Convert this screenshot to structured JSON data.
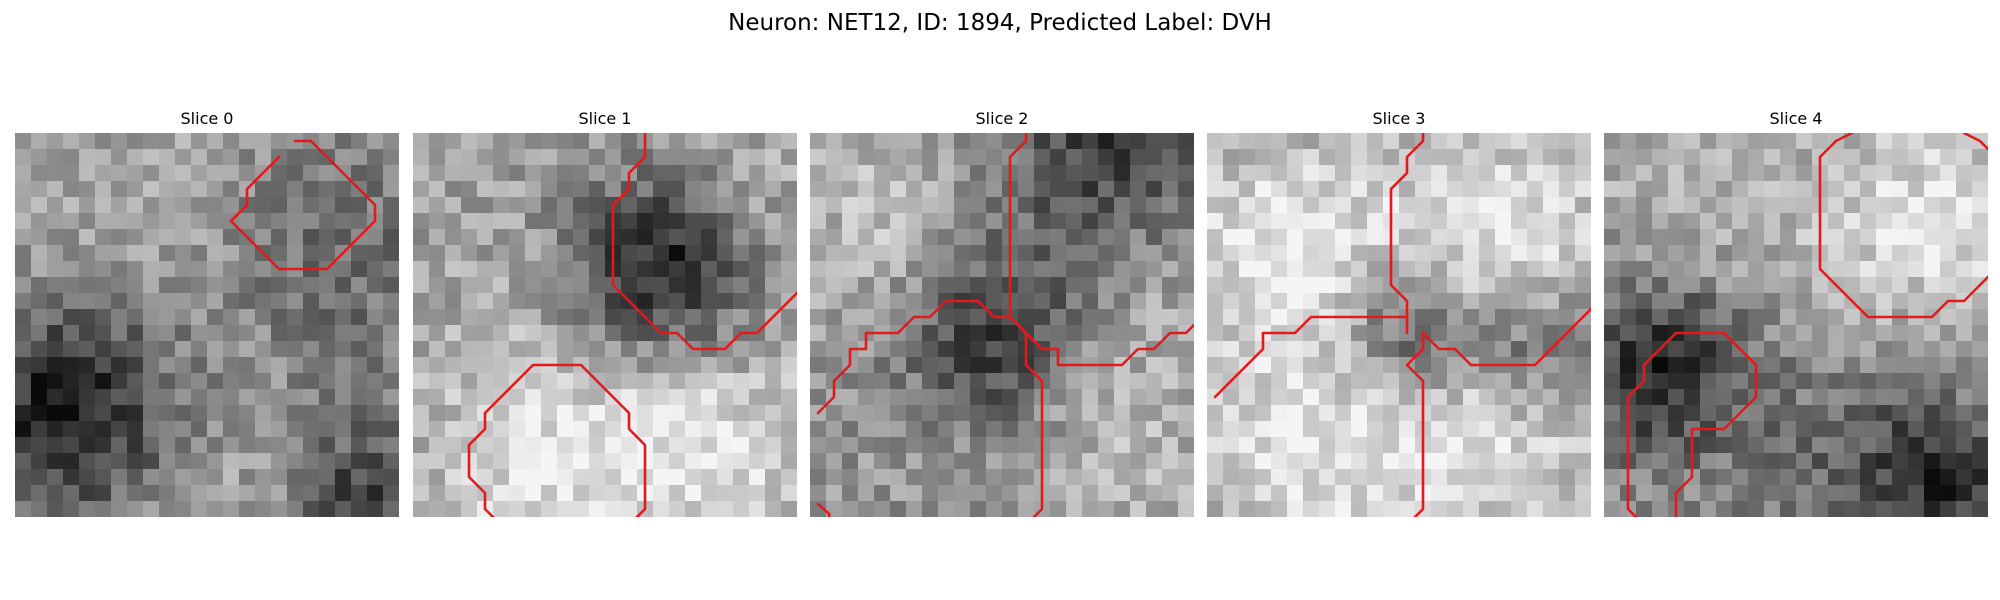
{
  "title": "Neuron: NET12, ID: 1894, Predicted Label: DVH",
  "contour_color": "#e31a1c",
  "panels": [
    {
      "title": "Slice 0",
      "contours": [
        [
          [
            17,
            0
          ],
          [
            18,
            0
          ],
          [
            19,
            1
          ],
          [
            20,
            2
          ],
          [
            21,
            3
          ],
          [
            22,
            4
          ],
          [
            22,
            5
          ],
          [
            21,
            6
          ],
          [
            20,
            7
          ],
          [
            19,
            8
          ],
          [
            17,
            8
          ],
          [
            16,
            8
          ],
          [
            15,
            7
          ],
          [
            14,
            6
          ],
          [
            13,
            5
          ],
          [
            14,
            4
          ],
          [
            14,
            3
          ],
          [
            15,
            2
          ],
          [
            16,
            1
          ]
        ]
      ]
    },
    {
      "title": "Slice 1",
      "contours": [
        [
          [
            14,
            -0.5
          ],
          [
            14,
            1
          ],
          [
            13,
            2
          ],
          [
            13,
            3
          ],
          [
            12,
            4
          ],
          [
            12,
            5
          ],
          [
            12,
            6
          ],
          [
            12,
            8
          ],
          [
            12,
            9
          ],
          [
            13,
            10
          ],
          [
            14,
            11
          ],
          [
            15,
            12
          ],
          [
            16,
            12
          ],
          [
            17,
            13
          ],
          [
            18,
            13
          ],
          [
            19,
            13
          ],
          [
            20,
            12
          ],
          [
            21,
            12
          ],
          [
            22,
            11
          ],
          [
            23,
            10
          ],
          [
            24,
            9
          ],
          [
            24,
            7
          ],
          [
            25,
            6
          ]
        ],
        [
          [
            5,
            24
          ],
          [
            4,
            23
          ],
          [
            4,
            22
          ],
          [
            3,
            21
          ],
          [
            3,
            20
          ],
          [
            3,
            19
          ],
          [
            4,
            18
          ],
          [
            4,
            17
          ],
          [
            5,
            16
          ],
          [
            6,
            15
          ],
          [
            7,
            14
          ],
          [
            8,
            14
          ],
          [
            9,
            14
          ],
          [
            10,
            14
          ],
          [
            11,
            15
          ],
          [
            12,
            16
          ],
          [
            13,
            17
          ],
          [
            13,
            18
          ],
          [
            14,
            19
          ],
          [
            14,
            20
          ],
          [
            14,
            21
          ],
          [
            14,
            22
          ],
          [
            14,
            23
          ],
          [
            13,
            24
          ]
        ]
      ]
    },
    {
      "title": "Slice 2",
      "contours": [
        [
          [
            13,
            -0.5
          ],
          [
            13,
            0
          ],
          [
            12,
            1
          ],
          [
            12,
            2
          ],
          [
            12,
            3
          ],
          [
            12,
            4
          ],
          [
            12,
            5
          ],
          [
            12,
            6
          ],
          [
            12,
            7
          ],
          [
            12,
            8
          ],
          [
            12,
            9
          ],
          [
            12,
            10
          ],
          [
            12,
            11
          ],
          [
            13,
            12
          ],
          [
            14,
            13
          ],
          [
            15,
            13
          ],
          [
            15,
            14
          ],
          [
            16,
            14
          ],
          [
            17,
            14
          ],
          [
            18,
            14
          ],
          [
            19,
            14
          ],
          [
            20,
            13
          ],
          [
            21,
            13
          ],
          [
            22,
            12
          ],
          [
            23,
            12
          ],
          [
            24,
            11
          ],
          [
            25,
            10
          ]
        ],
        [
          [
            0,
            17
          ],
          [
            1,
            16
          ],
          [
            1,
            15
          ],
          [
            2,
            14
          ],
          [
            2,
            13
          ],
          [
            3,
            13
          ],
          [
            3,
            12
          ],
          [
            4,
            12
          ],
          [
            5,
            12
          ],
          [
            6,
            11
          ],
          [
            7,
            11
          ],
          [
            8,
            10
          ],
          [
            9,
            10
          ],
          [
            10,
            10
          ],
          [
            11,
            11
          ],
          [
            12,
            11
          ],
          [
            13,
            12
          ],
          [
            13,
            14
          ],
          [
            14,
            15
          ],
          [
            14,
            17
          ],
          [
            14,
            19
          ],
          [
            14,
            21
          ],
          [
            14,
            23
          ],
          [
            13,
            24
          ]
        ],
        [
          [
            0,
            22.7
          ],
          [
            0.7,
            23.3
          ],
          [
            0.7,
            24
          ]
        ]
      ]
    },
    {
      "title": "Slice 3",
      "contours": [
        [
          [
            13,
            -0.5
          ],
          [
            13,
            0
          ],
          [
            12,
            1
          ],
          [
            12,
            2
          ],
          [
            11,
            3
          ],
          [
            11,
            4
          ],
          [
            11,
            5
          ],
          [
            11,
            6
          ],
          [
            11,
            7
          ],
          [
            11,
            8
          ],
          [
            11,
            9
          ],
          [
            12,
            10
          ],
          [
            12,
            11
          ],
          [
            12,
            12
          ]
        ],
        [
          [
            0,
            16
          ],
          [
            1,
            15
          ],
          [
            2,
            14
          ],
          [
            3,
            13
          ],
          [
            3,
            12
          ],
          [
            4,
            12
          ],
          [
            5,
            12
          ],
          [
            6,
            11
          ],
          [
            7,
            11
          ],
          [
            8,
            11
          ],
          [
            9,
            11
          ],
          [
            10,
            11
          ],
          [
            11,
            11
          ],
          [
            12,
            11
          ]
        ],
        [
          [
            13,
            13
          ],
          [
            13,
            12
          ],
          [
            14,
            13
          ],
          [
            15,
            13
          ],
          [
            16,
            14
          ],
          [
            17,
            14
          ],
          [
            18,
            14
          ],
          [
            19,
            14
          ],
          [
            20,
            14
          ],
          [
            21,
            13
          ],
          [
            22,
            12
          ],
          [
            23,
            11
          ],
          [
            24,
            10
          ]
        ],
        [
          [
            12,
            24
          ],
          [
            13,
            23
          ],
          [
            13,
            21
          ],
          [
            13,
            20
          ],
          [
            13,
            18
          ],
          [
            13,
            17
          ],
          [
            13,
            16
          ],
          [
            13,
            15
          ],
          [
            12,
            14
          ],
          [
            13,
            13
          ]
        ]
      ]
    },
    {
      "title": "Slice 4",
      "contours": [
        [
          [
            15,
            -0.5
          ],
          [
            14,
            0
          ],
          [
            13,
            1
          ],
          [
            13,
            3
          ],
          [
            13,
            5
          ],
          [
            13,
            7
          ],
          [
            13,
            8
          ],
          [
            14,
            9
          ],
          [
            15,
            10
          ],
          [
            16,
            11
          ],
          [
            17,
            11
          ],
          [
            18,
            11
          ],
          [
            19,
            11
          ],
          [
            20,
            11
          ],
          [
            21,
            10
          ],
          [
            22,
            10
          ],
          [
            23,
            9
          ],
          [
            24,
            8
          ],
          [
            25,
            7
          ]
        ],
        [
          [
            22,
            -0.5
          ],
          [
            23,
            0
          ],
          [
            24,
            1
          ],
          [
            25,
            2
          ]
        ],
        [
          [
            2,
            24
          ],
          [
            1,
            23
          ],
          [
            1,
            21
          ],
          [
            1,
            19
          ],
          [
            1,
            17
          ],
          [
            1,
            16
          ],
          [
            2,
            15
          ],
          [
            2,
            14
          ],
          [
            3,
            13
          ],
          [
            4,
            12
          ],
          [
            5,
            12
          ],
          [
            6,
            12
          ],
          [
            7,
            12
          ],
          [
            8,
            13
          ],
          [
            9,
            14
          ],
          [
            9,
            15
          ],
          [
            9,
            16
          ],
          [
            8,
            17
          ],
          [
            7,
            18
          ],
          [
            6,
            18
          ],
          [
            5,
            18
          ],
          [
            5,
            20
          ],
          [
            5,
            21
          ],
          [
            4,
            22
          ],
          [
            4,
            24
          ]
        ]
      ]
    }
  ]
}
